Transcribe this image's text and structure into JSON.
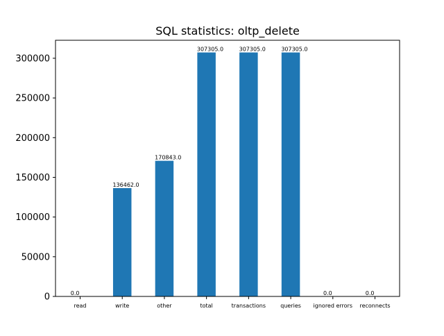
{
  "chart_data": {
    "type": "bar",
    "title": "SQL statistics: oltp_delete",
    "xlabel": "",
    "ylabel": "",
    "categories": [
      "read",
      "write",
      "other",
      "total",
      "transactions",
      "queries",
      "ignored errors",
      "reconnects"
    ],
    "values": [
      0.0,
      136462.0,
      170843.0,
      307305.0,
      307305.0,
      307305.0,
      0.0,
      0.0
    ],
    "data_labels": [
      "0.0",
      "136462.0",
      "170843.0",
      "307305.0",
      "307305.0",
      "307305.0",
      "0.0",
      "0.0"
    ],
    "ylim": [
      0,
      322670
    ],
    "yticks": [
      0,
      50000,
      100000,
      150000,
      200000,
      250000,
      300000
    ],
    "ytick_labels": [
      "0",
      "50000",
      "100000",
      "150000",
      "200000",
      "250000",
      "300000"
    ],
    "bar_color": "#1f77b4",
    "grid": false,
    "legend": "none"
  }
}
